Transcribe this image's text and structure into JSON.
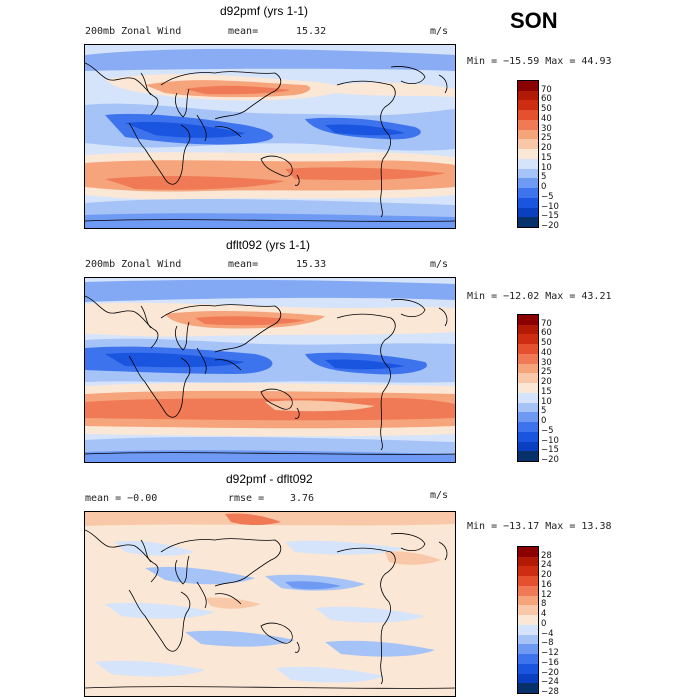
{
  "season": "SON",
  "palette_main": [
    "#08306b",
    "#0a3fbf",
    "#1a55e0",
    "#3d74ee",
    "#6f9af3",
    "#a5c3f7",
    "#d5e4fb",
    "#fbe7d6",
    "#f9c8a8",
    "#f5a47c",
    "#ef7a55",
    "#e5502f",
    "#cf2d12",
    "#b31a06",
    "#8b0000"
  ],
  "palette_diff": [
    "#08306b",
    "#0a3fbf",
    "#1a55e0",
    "#3d74ee",
    "#6f9af3",
    "#a5c3f7",
    "#d5e4fb",
    "#fbe7d6",
    "#f9c8a8",
    "#f5a47c",
    "#ef7a55",
    "#e5502f",
    "#cf2d12",
    "#b31a06",
    "#8b0000"
  ],
  "panels": [
    {
      "title": "d92pmf (yrs 1-1)",
      "left_label": "200mb Zonal Wind",
      "stat_label": "mean=",
      "stat_value": "15.32",
      "units": "m/s",
      "minmax": "Min = −15.59 Max =   44.93",
      "ticks": [
        "70",
        "60",
        "50",
        "40",
        "30",
        "25",
        "20",
        "15",
        "10",
        "5",
        "0",
        "−5",
        "−10",
        "−15",
        "−20"
      ]
    },
    {
      "title": "dflt092 (yrs 1-1)",
      "left_label": "200mb Zonal Wind",
      "stat_label": "mean=",
      "stat_value": "15.33",
      "units": "m/s",
      "minmax": "Min = −12.02 Max =   43.21",
      "ticks": [
        "70",
        "60",
        "50",
        "40",
        "30",
        "25",
        "20",
        "15",
        "10",
        "5",
        "0",
        "−5",
        "−10",
        "−15",
        "−20"
      ]
    },
    {
      "title": "d92pmf - dflt092",
      "left_label": "mean =   −0.00",
      "stat_label": "rmse =",
      "stat_value": "3.76",
      "units": "m/s",
      "minmax": "Min = −13.17 Max =   13.38",
      "ticks": [
        "28",
        "24",
        "20",
        "16",
        "12",
        "8",
        "4",
        "0",
        "−4",
        "−8",
        "−12",
        "−16",
        "−20",
        "−24",
        "−28"
      ]
    }
  ]
}
